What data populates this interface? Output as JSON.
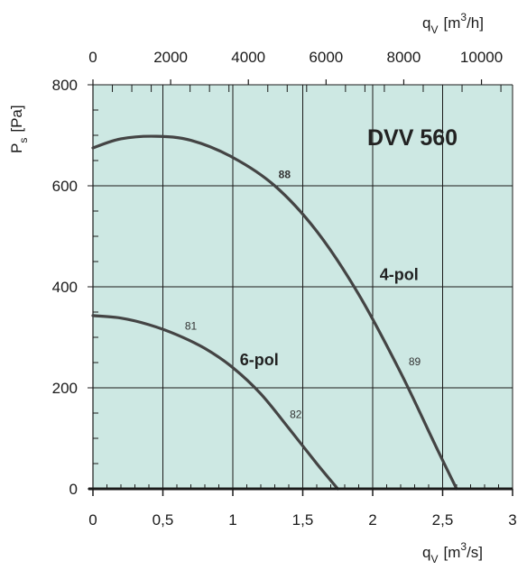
{
  "chart_data": {
    "type": "line",
    "title": "DVV 560",
    "ylabel": {
      "main": "P",
      "sub": "s",
      "unit": "[Pa]"
    },
    "xlabel": {
      "main": "q",
      "sub": "V",
      "unit_pre": "[m",
      "unit_sup": "3",
      "unit_post": "/s]"
    },
    "x2label": {
      "main": "q",
      "sub": "V",
      "unit_pre": "[m",
      "unit_sup": "3",
      "unit_post": "/h]"
    },
    "xlim": [
      0,
      3
    ],
    "ylim": [
      0,
      800
    ],
    "x2lim": [
      0,
      10800
    ],
    "x_ticks": [
      {
        "value": 0,
        "label": "0"
      },
      {
        "value": 0.5,
        "label": "0,5"
      },
      {
        "value": 1,
        "label": "1"
      },
      {
        "value": 1.5,
        "label": "1,5"
      },
      {
        "value": 2,
        "label": "2"
      },
      {
        "value": 2.5,
        "label": "2,5"
      },
      {
        "value": 3,
        "label": "3"
      }
    ],
    "y_ticks": [
      {
        "value": 0,
        "label": "0"
      },
      {
        "value": 200,
        "label": "200"
      },
      {
        "value": 400,
        "label": "400"
      },
      {
        "value": 600,
        "label": "600"
      },
      {
        "value": 800,
        "label": "800"
      }
    ],
    "x2_ticks": [
      {
        "value": 0,
        "label": "0"
      },
      {
        "value": 2000,
        "label": "2000"
      },
      {
        "value": 4000,
        "label": "4000"
      },
      {
        "value": 6000,
        "label": "6000"
      },
      {
        "value": 8000,
        "label": "8000"
      },
      {
        "value": 10000,
        "label": "10000"
      }
    ],
    "grid": true,
    "background_color": "#cde8e3",
    "line_color": "#444444",
    "series": [
      {
        "name": "4-pol",
        "x": [
          0,
          0.2,
          0.45,
          0.7,
          1.0,
          1.3,
          1.6,
          1.9,
          2.2,
          2.45,
          2.6
        ],
        "y": [
          675,
          693,
          698,
          690,
          656,
          600,
          510,
          385,
          230,
          85,
          0
        ],
        "annotations": [
          {
            "x": 1.37,
            "y": 615,
            "label": "88",
            "bold": true
          },
          {
            "x": 2.3,
            "y": 245,
            "label": "89",
            "bold": false
          }
        ]
      },
      {
        "name": "6-pol",
        "x": [
          0,
          0.2,
          0.4,
          0.6,
          0.8,
          1.0,
          1.2,
          1.4,
          1.6,
          1.75
        ],
        "y": [
          343,
          338,
          325,
          305,
          278,
          240,
          188,
          120,
          50,
          0
        ],
        "annotations": [
          {
            "x": 0.7,
            "y": 315,
            "label": "81",
            "bold": false
          },
          {
            "x": 1.45,
            "y": 140,
            "label": "82",
            "bold": false
          }
        ]
      }
    ],
    "curve_labels": [
      {
        "text": "4-pol",
        "x": 2.05,
        "y": 413
      },
      {
        "text": "6-pol",
        "x": 1.05,
        "y": 245
      }
    ]
  }
}
